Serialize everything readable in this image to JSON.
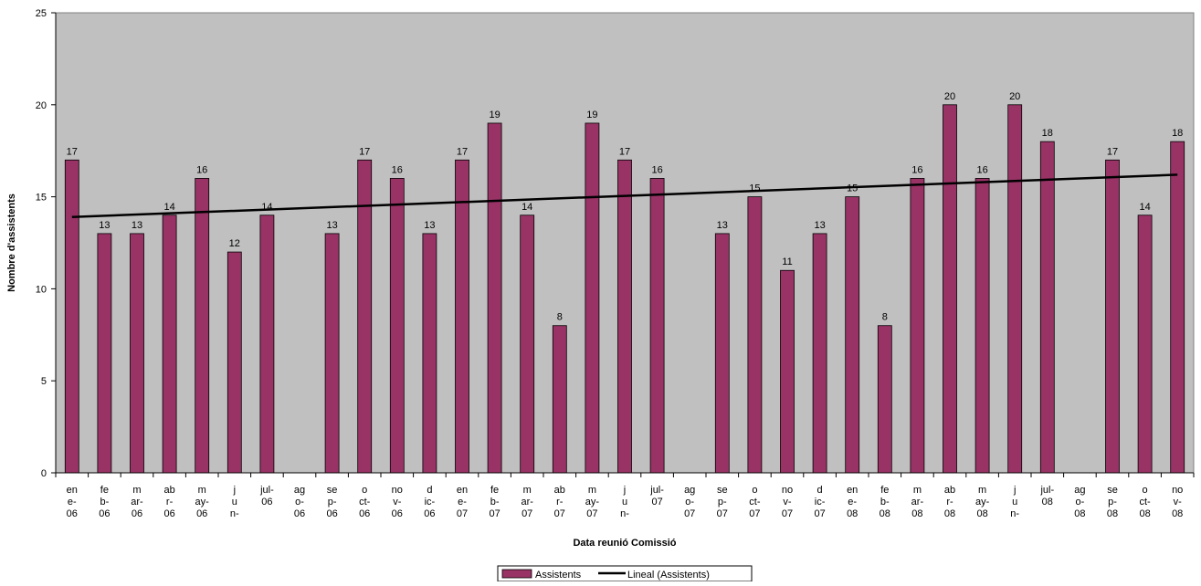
{
  "chart_data": {
    "type": "bar",
    "title": "",
    "xlabel": "Data reunió Comissió",
    "ylabel": "Nombre d'assistents",
    "ylim": [
      0,
      25
    ],
    "yticks": [
      0,
      5,
      10,
      15,
      20,
      25
    ],
    "grid": false,
    "legend_position": "bottom",
    "plot_background": "#C0C0C0",
    "categories": [
      [
        "en",
        "e-",
        "06"
      ],
      [
        "fe",
        "b-",
        "06"
      ],
      [
        "m",
        "ar-",
        "06"
      ],
      [
        "ab",
        "r-",
        "06"
      ],
      [
        "m",
        "ay-",
        "06"
      ],
      [
        "j",
        "u",
        "n-"
      ],
      [
        "jul-",
        "06"
      ],
      [
        "ag",
        "o-",
        "06"
      ],
      [
        "se",
        "p-",
        "06"
      ],
      [
        "o",
        "ct-",
        "06"
      ],
      [
        "no",
        "v-",
        "06"
      ],
      [
        "d",
        "ic-",
        "06"
      ],
      [
        "en",
        "e-",
        "07"
      ],
      [
        "fe",
        "b-",
        "07"
      ],
      [
        "m",
        "ar-",
        "07"
      ],
      [
        "ab",
        "r-",
        "07"
      ],
      [
        "m",
        "ay-",
        "07"
      ],
      [
        "j",
        "u",
        "n-"
      ],
      [
        "jul-",
        "07"
      ],
      [
        "ag",
        "o-",
        "07"
      ],
      [
        "se",
        "p-",
        "07"
      ],
      [
        "o",
        "ct-",
        "07"
      ],
      [
        "no",
        "v-",
        "07"
      ],
      [
        "d",
        "ic-",
        "07"
      ],
      [
        "en",
        "e-",
        "08"
      ],
      [
        "fe",
        "b-",
        "08"
      ],
      [
        "m",
        "ar-",
        "08"
      ],
      [
        "ab",
        "r-",
        "08"
      ],
      [
        "m",
        "ay-",
        "08"
      ],
      [
        "j",
        "u",
        "n-"
      ],
      [
        "jul-",
        "08"
      ],
      [
        "ag",
        "o-",
        "08"
      ],
      [
        "se",
        "p-",
        "08"
      ],
      [
        "o",
        "ct-",
        "08"
      ],
      [
        "no",
        "v-",
        "08"
      ]
    ],
    "series": [
      {
        "name": "Assistents",
        "type": "bar",
        "color": "#993366",
        "values": [
          17,
          13,
          13,
          14,
          16,
          12,
          14,
          null,
          13,
          17,
          16,
          13,
          17,
          19,
          14,
          8,
          19,
          17,
          16,
          null,
          13,
          15,
          11,
          13,
          15,
          8,
          16,
          20,
          16,
          20,
          18,
          null,
          17,
          14,
          18
        ]
      },
      {
        "name": "Lineal (Assistents)",
        "type": "trendline",
        "color": "#000000",
        "start": 13.9,
        "end": 16.2
      }
    ]
  }
}
